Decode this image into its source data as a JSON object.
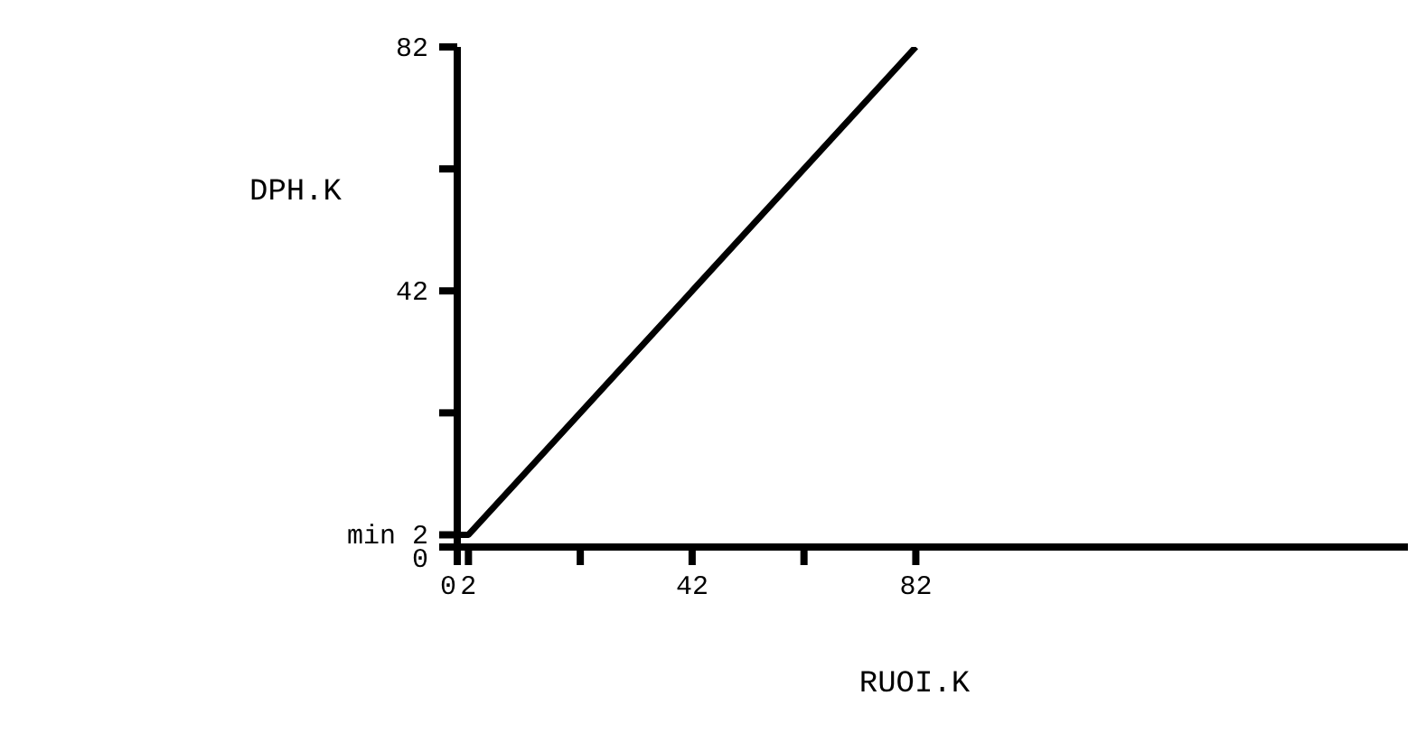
{
  "chart_data": {
    "type": "line",
    "xlabel": "RUOI.K",
    "ylabel": "DPH.K",
    "x": [
      0,
      2,
      82
    ],
    "series": [
      {
        "color": "#000000",
        "values": [
          2,
          2,
          82
        ]
      }
    ],
    "xlim": [
      0,
      170
    ],
    "ylim": [
      0,
      82
    ],
    "xticks": [
      0,
      2,
      {
        "value": 22,
        "label": null
      },
      42,
      {
        "value": 62,
        "label": null
      },
      82
    ],
    "yticks": [
      0,
      {
        "value": 2,
        "label": "min 2"
      },
      {
        "value": 22,
        "label": null
      },
      42,
      {
        "value": 62,
        "label": null
      },
      82
    ],
    "grid": false,
    "marker": "none",
    "line_style": "solid"
  }
}
